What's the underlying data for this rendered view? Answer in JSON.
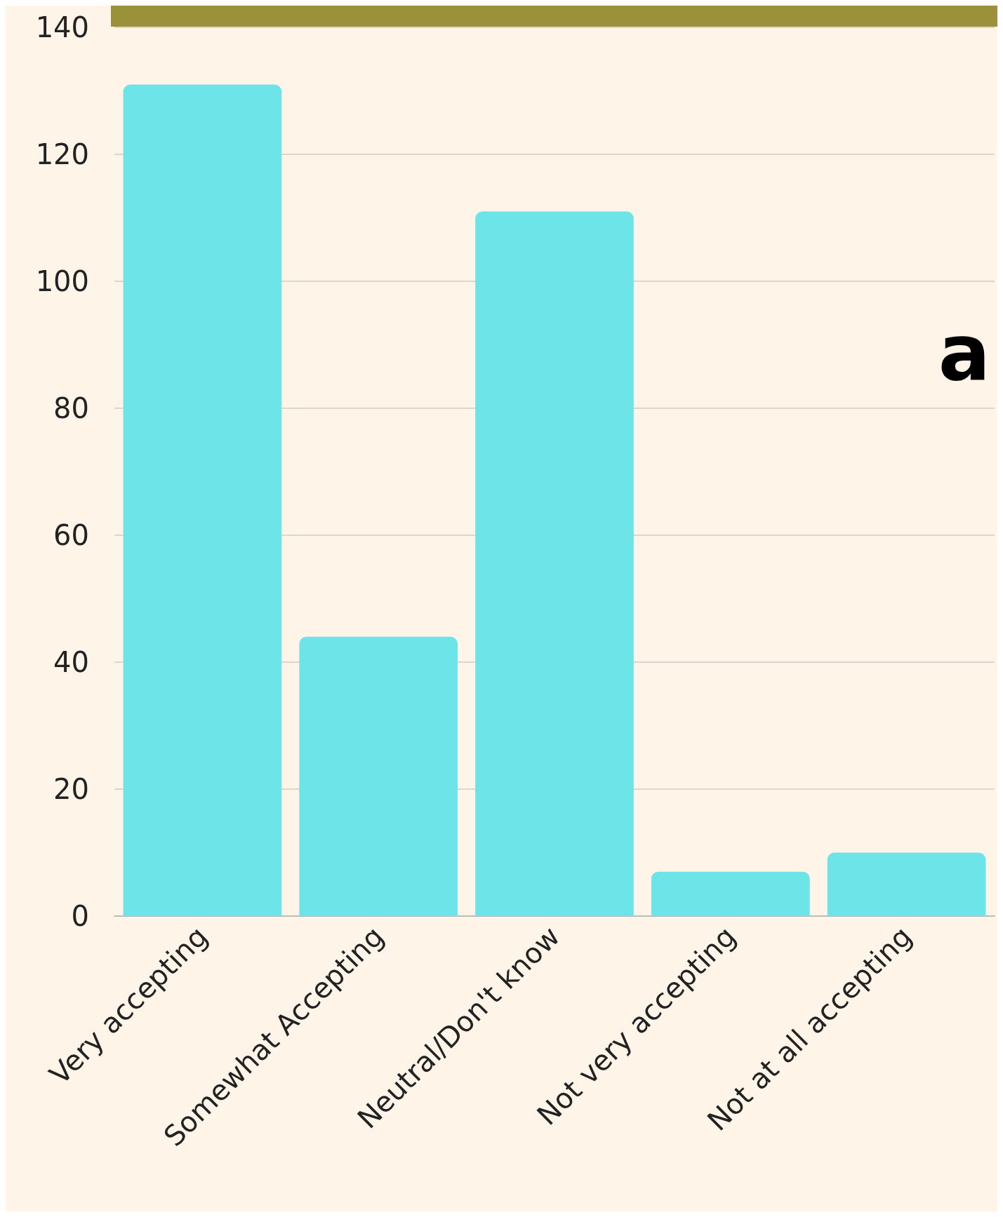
{
  "chart_data": {
    "type": "bar",
    "categories": [
      "Very accepting",
      "Somewhat Accepting",
      "Neutral/Don't know",
      "Not very accepting",
      "Not at all accepting"
    ],
    "values": [
      131,
      44,
      111,
      7,
      10
    ],
    "color": "#6de4e8",
    "ylim": [
      0,
      140
    ],
    "yticks": [
      0,
      20,
      40,
      60,
      80,
      100,
      120,
      140
    ],
    "grid": "y",
    "annotations": [
      "a"
    ]
  }
}
